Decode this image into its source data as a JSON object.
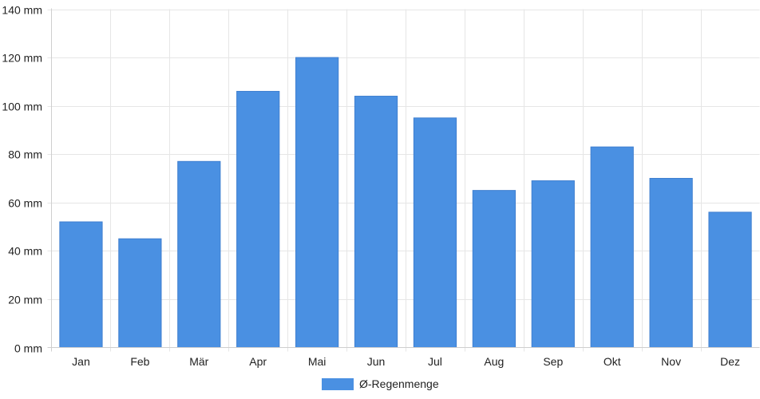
{
  "chart_data": {
    "type": "bar",
    "categories": [
      "Jan",
      "Feb",
      "Mär",
      "Apr",
      "Mai",
      "Jun",
      "Jul",
      "Aug",
      "Sep",
      "Okt",
      "Nov",
      "Dez"
    ],
    "series": [
      {
        "name": "Ø-Regenmenge",
        "values": [
          52,
          45,
          77,
          106,
          120,
          104,
          95,
          65,
          69,
          83,
          70,
          56
        ],
        "color": "#4a90e2"
      }
    ],
    "y_ticks": [
      "0 mm",
      "20 mm",
      "40 mm",
      "60 mm",
      "80 mm",
      "100 mm",
      "120 mm",
      "140 mm"
    ],
    "ylim": [
      0,
      140
    ],
    "y_unit": "mm",
    "grid": true,
    "legend_position": "bottom-center"
  }
}
